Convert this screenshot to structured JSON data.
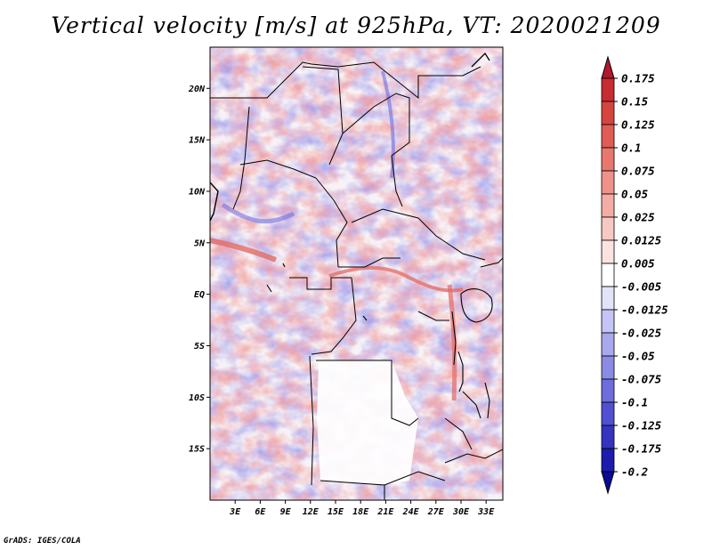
{
  "chart_data": {
    "type": "heatmap",
    "title": "Vertical velocity [m/s] at 925hPa, VT: 2020021209",
    "variable": "Vertical velocity",
    "units": "m/s",
    "level": "925hPa",
    "valid_time": "2020021209",
    "xlabel": "",
    "ylabel": "",
    "xlim": [
      0,
      35
    ],
    "ylim": [
      -20,
      24
    ],
    "x_ticks": [
      3,
      6,
      9,
      12,
      15,
      18,
      21,
      24,
      27,
      30,
      33
    ],
    "x_tick_labels": [
      "3E",
      "6E",
      "9E",
      "12E",
      "15E",
      "18E",
      "21E",
      "24E",
      "27E",
      "30E",
      "33E"
    ],
    "y_ticks": [
      20,
      15,
      10,
      5,
      0,
      -5,
      -10,
      -15
    ],
    "y_tick_labels": [
      "20N",
      "15N",
      "10N",
      "5N",
      "EQ",
      "5S",
      "10S",
      "15S"
    ],
    "colorbar": {
      "levels": [
        "0.175",
        "0.15",
        "0.125",
        "0.1",
        "0.075",
        "0.05",
        "0.025",
        "0.0125",
        "0.005",
        "-0.005",
        "-0.0125",
        "-0.025",
        "-0.05",
        "-0.075",
        "-0.1",
        "-0.125",
        "-0.175",
        "-0.2"
      ],
      "colors": [
        "#b2182b",
        "#c72c32",
        "#d6443f",
        "#e05c55",
        "#e8776e",
        "#ef928a",
        "#f4ada6",
        "#f8c8c3",
        "#fce3e0",
        "#ffffff",
        "#e2e2fb",
        "#c5c5f5",
        "#a8a8ee",
        "#8b8be6",
        "#6d6ddc",
        "#5050d0",
        "#3434c0",
        "#1c1cae",
        "#0a0a96"
      ]
    }
  },
  "footer": "GrADS: IGES/COLA"
}
